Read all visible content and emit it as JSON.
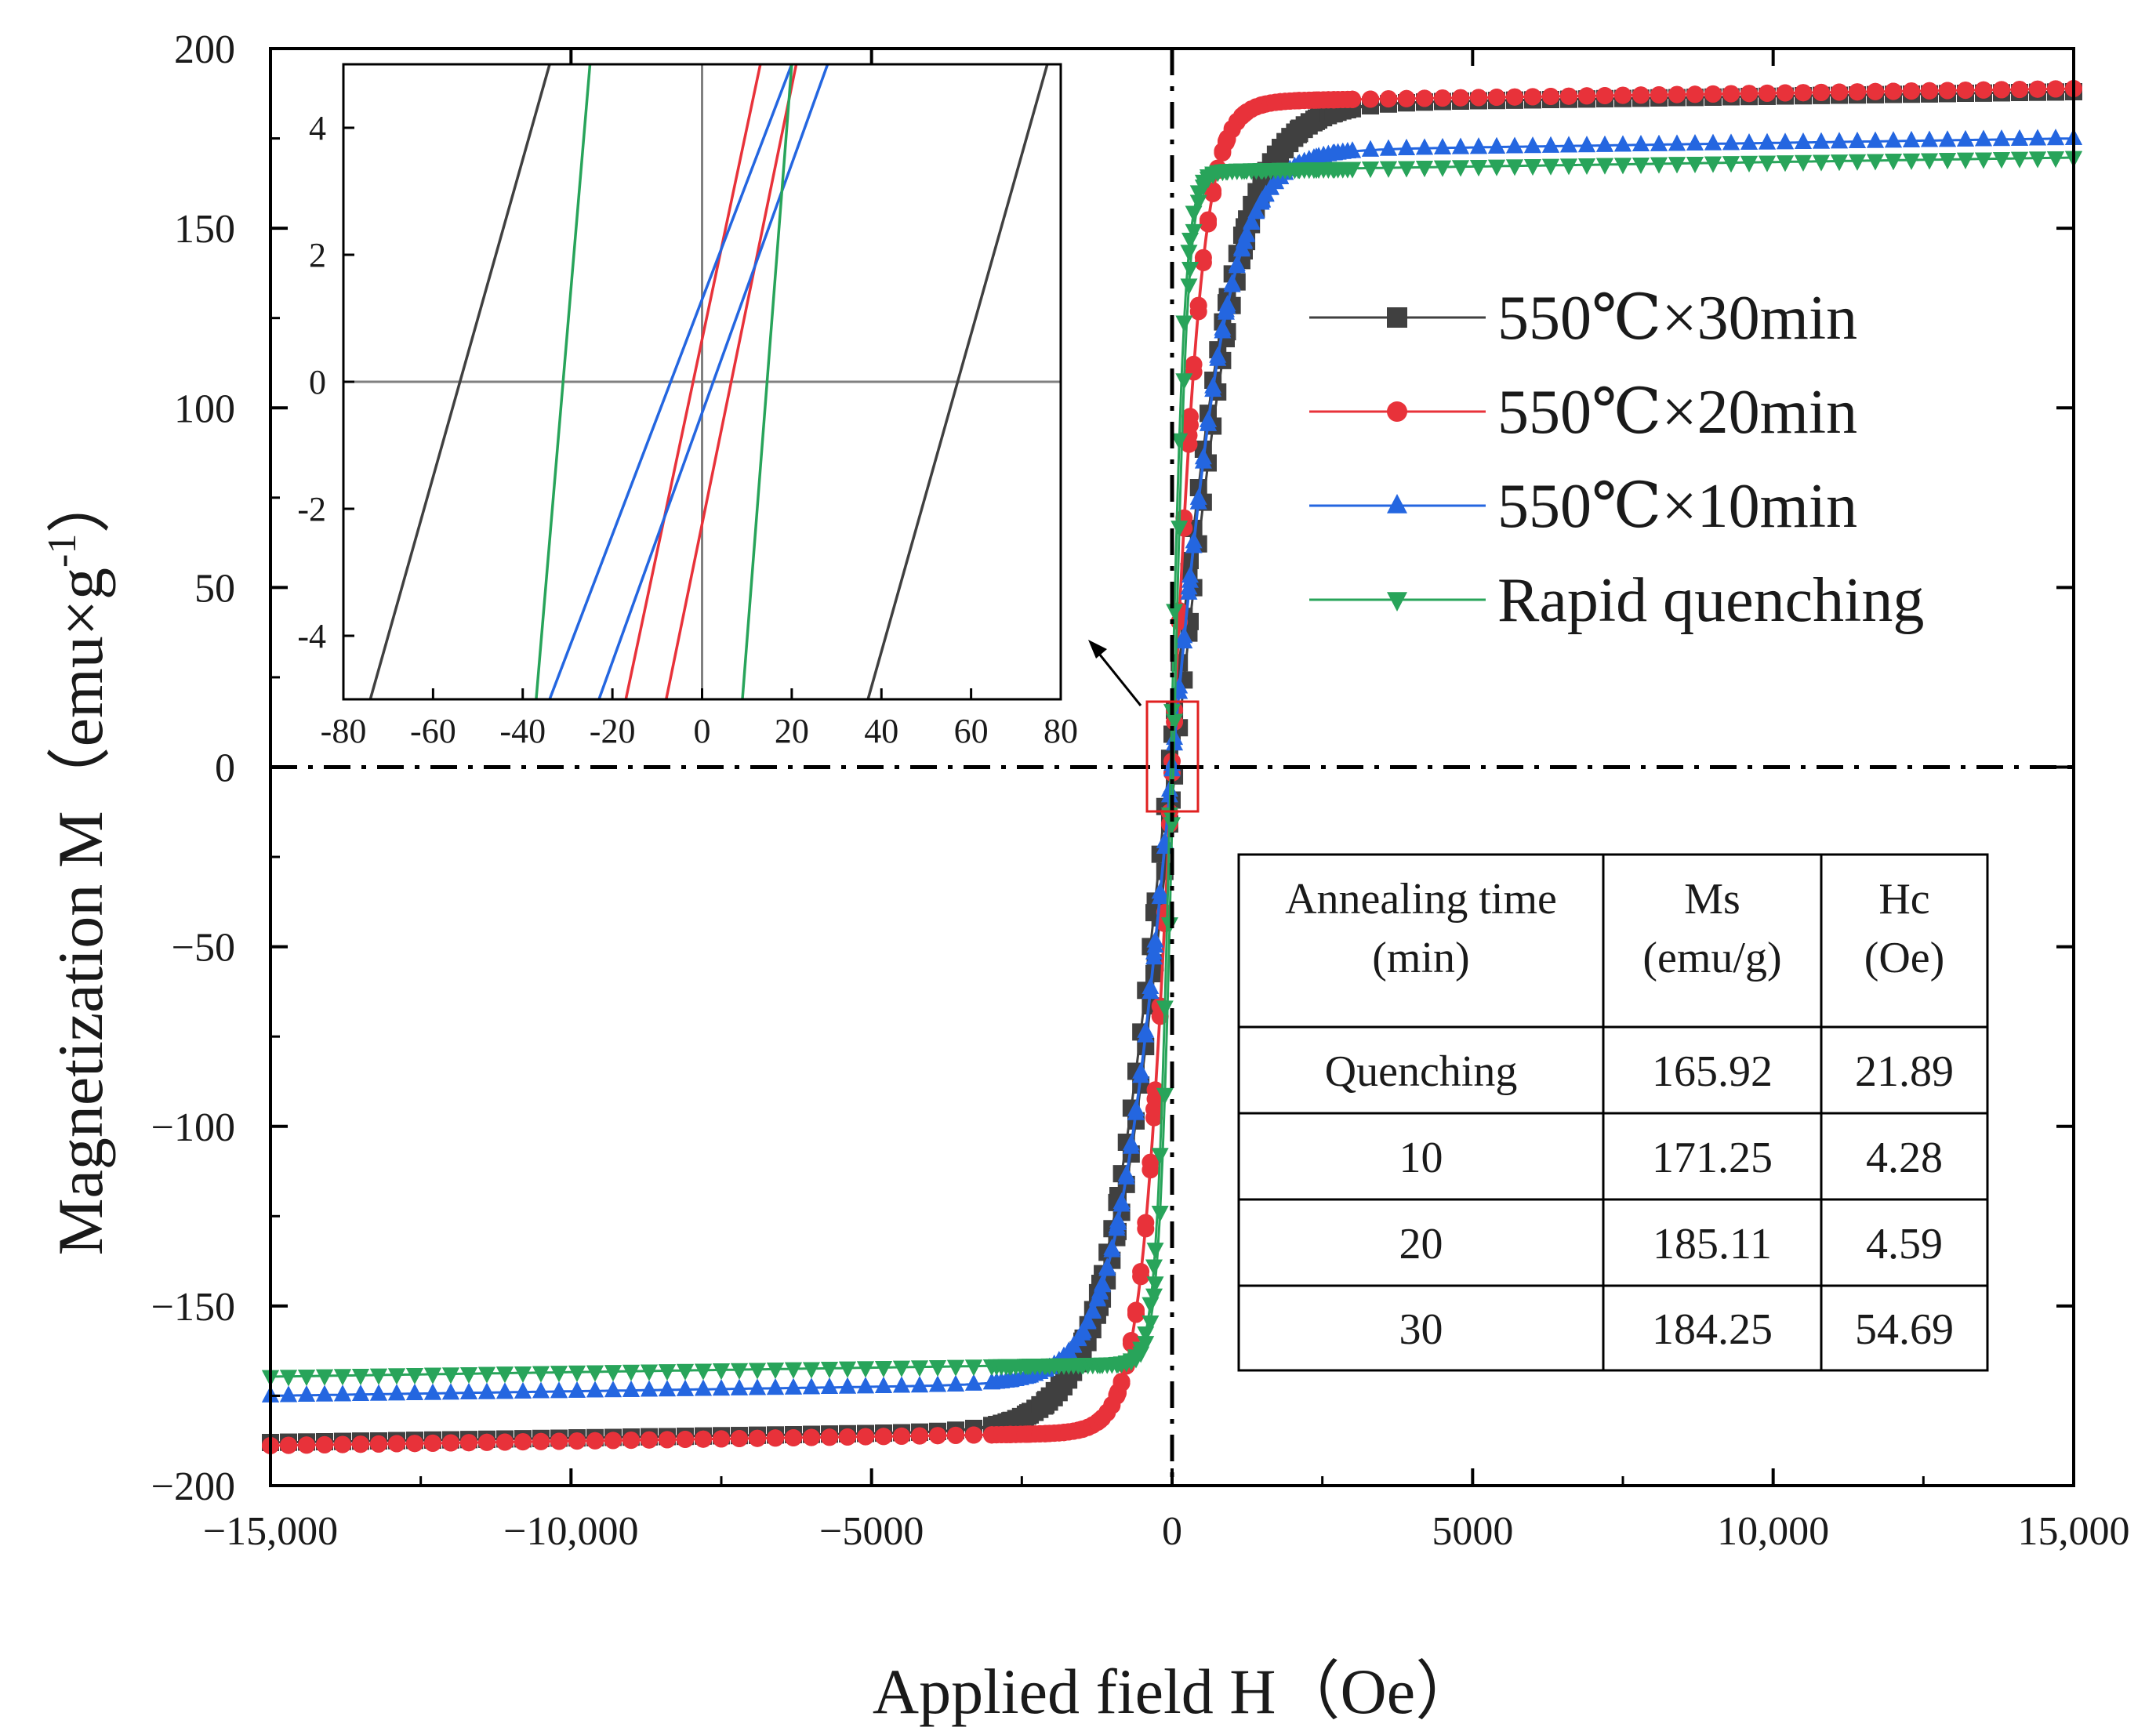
{
  "chart_data": {
    "type": "line",
    "title": "",
    "xlabel": "Applied field H（Oe）",
    "ylabel": "Magnetization M（emu×g",
    "ylabel_sup": "-1",
    "ylabel_close": "）",
    "xlim": [
      -15000,
      15000
    ],
    "ylim": [
      -200,
      200
    ],
    "x_ticks": [
      -15000,
      -10000,
      -5000,
      0,
      5000,
      10000,
      15000
    ],
    "x_tick_labels": [
      "−15,000",
      "−10,000",
      "−5000",
      "0",
      "5000",
      "10,000",
      "15,000"
    ],
    "y_ticks": [
      -200,
      -150,
      -100,
      -50,
      0,
      50,
      100,
      150,
      200
    ],
    "y_tick_labels": [
      "−200",
      "−150",
      "−100",
      "−50",
      "0",
      "50",
      "100",
      "150",
      "200"
    ],
    "legend_position": "top-right",
    "series": [
      {
        "name": "550℃×30min",
        "color": "#404040",
        "marker": "square",
        "Ms": 184.25,
        "Hc": 54.69,
        "H0": 1100
      },
      {
        "name": "550℃×20min",
        "color": "#e8323a",
        "marker": "circle",
        "Ms": 185.11,
        "Hc": 4.59,
        "H0": 520
      },
      {
        "name": "550℃×10min",
        "color": "#2466e0",
        "marker": "triangle-up",
        "Ms": 171.25,
        "Hc": 4.28,
        "H0": 950
      },
      {
        "name": "Rapid quenching",
        "color": "#28a45a",
        "marker": "triangle-down",
        "Ms": 165.92,
        "Hc": 21.89,
        "H0": 230
      }
    ],
    "inset": {
      "xlim": [
        -80,
        80
      ],
      "ylim": [
        -5,
        5
      ],
      "x_ticks": [
        -80,
        -60,
        -40,
        -20,
        0,
        20,
        40,
        60,
        80
      ],
      "x_tick_labels": [
        "-80",
        "-60",
        "-40",
        "-20",
        "0",
        "20",
        "40",
        "60",
        "80"
      ],
      "y_ticks": [
        -4,
        -2,
        0,
        2,
        4
      ],
      "y_tick_labels": [
        "-4",
        "-2",
        "0",
        "2",
        "4"
      ],
      "lines": [
        {
          "color": "#404040",
          "points": [
            [
              -74,
              -5
            ],
            [
              -34,
              5
            ]
          ]
        },
        {
          "color": "#404040",
          "points": [
            [
              37,
              -5
            ],
            [
              77,
              5
            ]
          ]
        },
        {
          "color": "#e8323a",
          "points": [
            [
              -17,
              -5
            ],
            [
              13,
              5
            ]
          ]
        },
        {
          "color": "#e8323a",
          "points": [
            [
              -8,
              -5
            ],
            [
              21,
              5
            ]
          ]
        },
        {
          "color": "#2466e0",
          "points": [
            [
              -34,
              -5
            ],
            [
              20,
              5
            ]
          ]
        },
        {
          "color": "#2466e0",
          "points": [
            [
              -23,
              -5
            ],
            [
              28,
              5
            ]
          ]
        },
        {
          "color": "#28a45a",
          "points": [
            [
              -37,
              -5
            ],
            [
              -25,
              5
            ]
          ]
        },
        {
          "color": "#28a45a",
          "points": [
            [
              9,
              -5
            ],
            [
              20,
              5
            ]
          ]
        }
      ]
    },
    "table": {
      "headers": [
        [
          "Annealing time",
          "(min)"
        ],
        [
          "Ms",
          "(emu/g)"
        ],
        [
          "Hc",
          "(Oe)"
        ]
      ],
      "rows": [
        [
          "Quenching",
          "165.92",
          "21.89"
        ],
        [
          "10",
          "171.25",
          "4.28"
        ],
        [
          "20",
          "185.11",
          "4.59"
        ],
        [
          "30",
          "184.25",
          "54.69"
        ]
      ]
    }
  }
}
